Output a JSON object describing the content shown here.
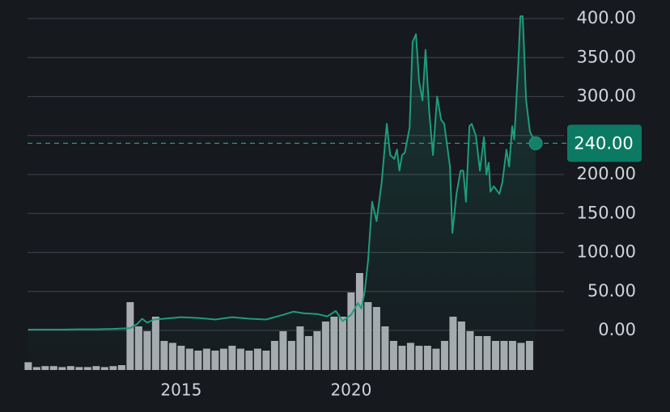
{
  "chart_data": {
    "type": "line",
    "color": "#1f9c7c",
    "x": [
      2010.5,
      2011,
      2011.5,
      2012,
      2012.5,
      2013,
      2013.5,
      2013.7,
      2013.85,
      2014,
      2014.2,
      2014.5,
      2015,
      2015.5,
      2016,
      2016.5,
      2017,
      2017.5,
      2018,
      2018.3,
      2018.6,
      2019,
      2019.3,
      2019.55,
      2019.75,
      2020,
      2020.2,
      2020.3,
      2020.4,
      2020.5,
      2020.62,
      2020.75,
      2020.9,
      2021.05,
      2021.15,
      2021.27,
      2021.35,
      2021.42,
      2021.5,
      2021.58,
      2021.72,
      2021.81,
      2021.91,
      2022.0,
      2022.1,
      2022.19,
      2022.3,
      2022.41,
      2022.53,
      2022.65,
      2022.74,
      2022.91,
      2022.98,
      2023.1,
      2023.22,
      2023.3,
      2023.38,
      2023.48,
      2023.55,
      2023.67,
      2023.79,
      2023.91,
      2023.98,
      2024.05,
      2024.1,
      2024.2,
      2024.36,
      2024.45,
      2024.57,
      2024.65,
      2024.74,
      2024.8,
      2024.91,
      2024.98,
      2025.05,
      2025.15,
      2025.26,
      2025.43
    ],
    "values": [
      1,
      1,
      1,
      1.5,
      1.5,
      2,
      3,
      8,
      15,
      10,
      14,
      15,
      17,
      16,
      14,
      17,
      15,
      14,
      20,
      24,
      22,
      21,
      18,
      25,
      12,
      20,
      35,
      28,
      50,
      90,
      165,
      140,
      190,
      265,
      225,
      220,
      232,
      205,
      225,
      228,
      260,
      370,
      380,
      320,
      295,
      360,
      280,
      225,
      300,
      270,
      265,
      210,
      125,
      175,
      205,
      205,
      165,
      262,
      265,
      250,
      205,
      248,
      200,
      215,
      178,
      185,
      175,
      190,
      232,
      210,
      262,
      245,
      335,
      403,
      403,
      295,
      255,
      240
    ],
    "xlim": [
      2010.48,
      2025.43
    ],
    "xticks": [
      2015,
      2020
    ],
    "ylim": [
      0,
      400
    ],
    "yticks": [
      {
        "value": 0,
        "label": "0.00"
      },
      {
        "value": 50,
        "label": "50.00"
      },
      {
        "value": 100,
        "label": "100.00"
      },
      {
        "value": 150,
        "label": "150.00"
      },
      {
        "value": 200,
        "label": "200.00"
      },
      {
        "value": 250,
        "label": "250.00"
      },
      {
        "value": 300,
        "label": "300.00"
      },
      {
        "value": 350,
        "label": "350.00"
      },
      {
        "value": 400,
        "label": "400.00"
      }
    ],
    "grid": true,
    "last_value": {
      "value": 240,
      "label": "240.00"
    },
    "volume": {
      "type": "bar",
      "color": "#a9acb0",
      "ylim": [
        0,
        100
      ],
      "x": [
        2010.5,
        2010.75,
        2011,
        2011.25,
        2011.5,
        2011.75,
        2012,
        2012.25,
        2012.5,
        2012.75,
        2013,
        2013.25,
        2013.5,
        2013.75,
        2014,
        2014.25,
        2014.5,
        2014.75,
        2015,
        2015.25,
        2015.5,
        2015.75,
        2016,
        2016.25,
        2016.5,
        2016.75,
        2017,
        2017.25,
        2017.5,
        2017.75,
        2018,
        2018.25,
        2018.5,
        2018.75,
        2019,
        2019.25,
        2019.5,
        2019.75,
        2020,
        2020.25,
        2020.5,
        2020.75,
        2021,
        2021.25,
        2021.5,
        2021.75,
        2022,
        2022.25,
        2022.5,
        2022.75,
        2023,
        2023.25,
        2023.5,
        2023.75,
        2024,
        2024.25,
        2024.5,
        2024.75,
        2025,
        2025.25
      ],
      "values": [
        8,
        3,
        4,
        4,
        3,
        4,
        3,
        3,
        4,
        3,
        4,
        5,
        70,
        45,
        40,
        55,
        30,
        28,
        25,
        22,
        20,
        22,
        20,
        22,
        25,
        22,
        20,
        22,
        20,
        30,
        40,
        30,
        45,
        35,
        40,
        50,
        55,
        55,
        80,
        100,
        70,
        65,
        45,
        30,
        25,
        28,
        25,
        25,
        22,
        30,
        55,
        50,
        40,
        35,
        35,
        30,
        30,
        30,
        28,
        30
      ]
    }
  }
}
